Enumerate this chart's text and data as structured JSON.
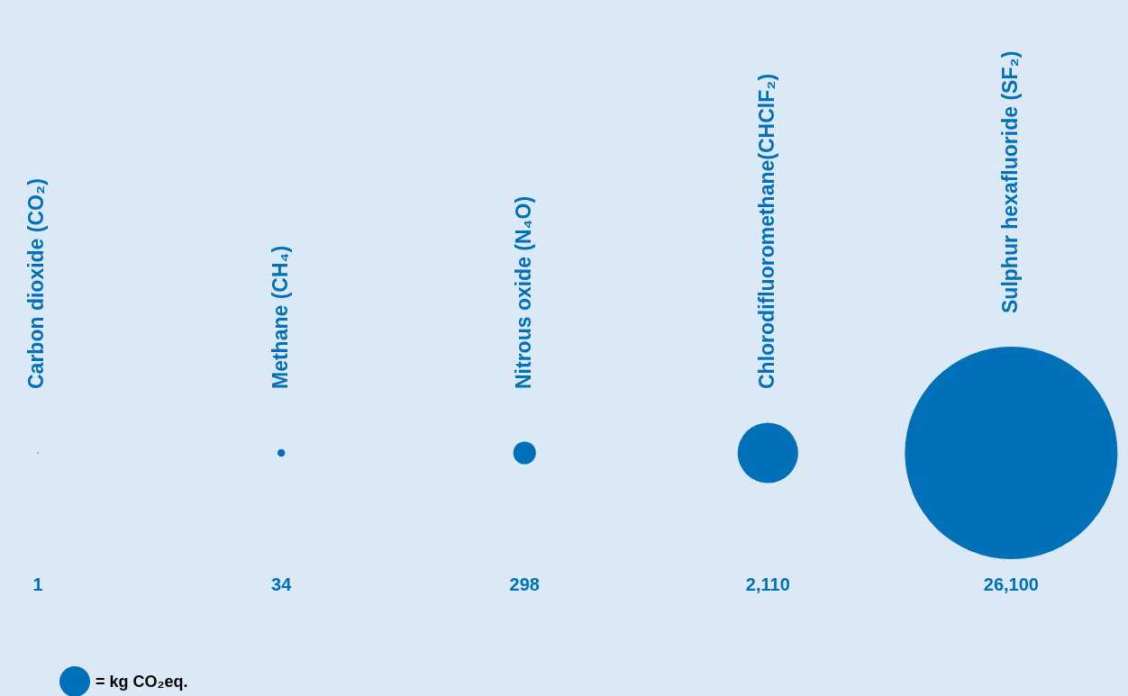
{
  "chart_data": {
    "type": "other",
    "categories": [
      "Carbon dioxide (CO₂)",
      "Methane (CH₄)",
      "Nitrous oxide (N₄O)",
      "Chlorodifluoromethane(CHClF₂)",
      "Sulphur hexafluoride (SF₂)"
    ],
    "values": [
      1,
      34,
      298,
      2110,
      26100
    ],
    "value_labels": [
      "1",
      "34",
      "298",
      "2,110",
      "26,100"
    ],
    "color": "#0070b8",
    "annotations": [
      "= kg CO₂eq."
    ]
  }
}
